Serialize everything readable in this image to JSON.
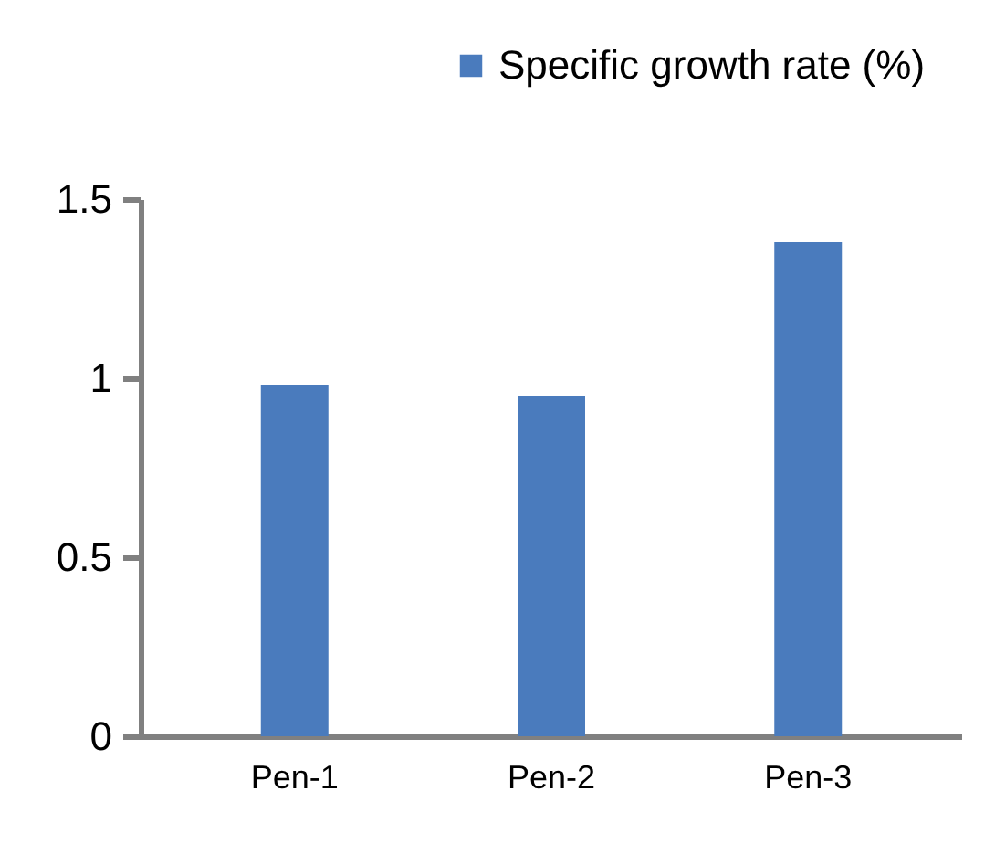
{
  "chart_data": {
    "type": "bar",
    "categories": [
      "Pen-1",
      "Pen-2",
      "Pen-3"
    ],
    "series": [
      {
        "name": "Specific growth rate (%)",
        "color": "#4a7bbd",
        "values": [
          0.98,
          0.95,
          1.38
        ]
      }
    ],
    "ylim": [
      0,
      1.5
    ],
    "yticks": [
      0,
      0.5,
      1,
      1.5
    ],
    "grid": false,
    "legend": "top right"
  }
}
